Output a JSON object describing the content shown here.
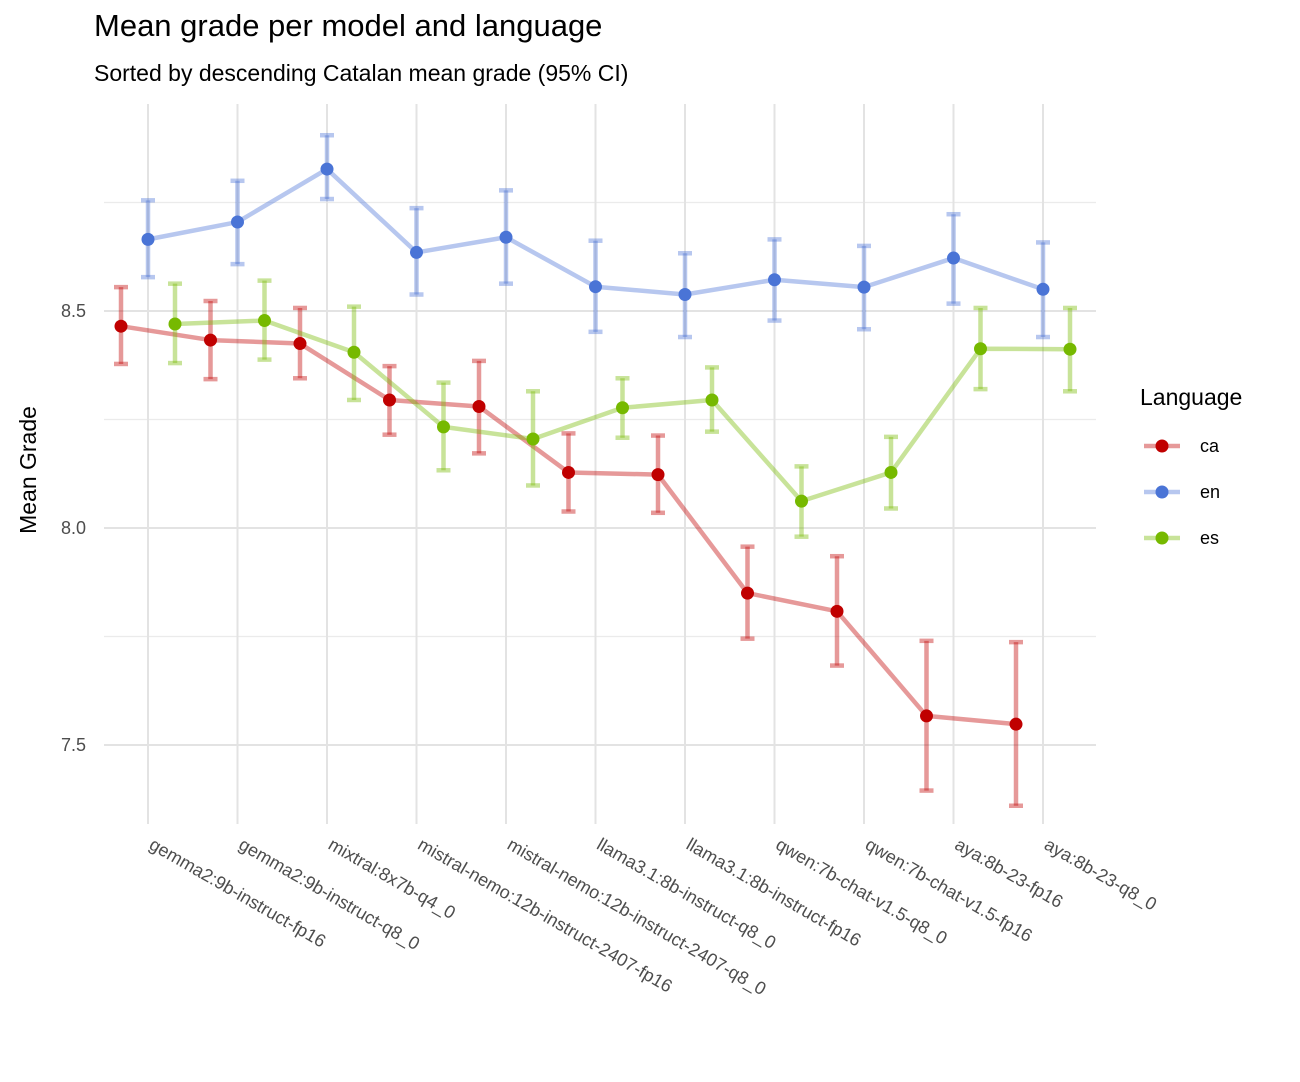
{
  "chart_data": {
    "type": "line",
    "title": "Mean grade per model and language",
    "subtitle": "Sorted by descending Catalan mean grade (95% CI)",
    "xlabel": "",
    "ylabel": "Mean Grade",
    "ylim": [
      7.3,
      8.95
    ],
    "yticks": [
      7.5,
      8.0,
      8.5
    ],
    "ytick_labels": [
      "7.5",
      "8.0",
      "8.5"
    ],
    "grid": true,
    "legend_title": "Language",
    "legend_position": "right",
    "categories": [
      "gemma2:9b-instruct-fp16",
      "gemma2:9b-instruct-q8_0",
      "mixtral:8x7b-q4_0",
      "mistral-nemo:12b-instruct-2407-fp16",
      "mistral-nemo:12b-instruct-2407-q8_0",
      "llama3.1:8b-instruct-q8_0",
      "llama3.1:8b-instruct-fp16",
      "qwen:7b-chat-v1.5-q8_0",
      "qwen:7b-chat-v1.5-fp16",
      "aya:8b-23-fp16",
      "aya:8b-23-q8_0"
    ],
    "series": [
      {
        "name": "ca",
        "color": "#c00000",
        "values": [
          8.465,
          8.433,
          8.425,
          8.295,
          8.28,
          8.128,
          8.123,
          7.85,
          7.808,
          7.567,
          7.548
        ],
        "ci_low": [
          8.378,
          8.343,
          8.345,
          8.215,
          8.172,
          8.038,
          8.035,
          7.745,
          7.683,
          7.395,
          7.36
        ],
        "ci_high": [
          8.555,
          8.523,
          8.507,
          8.373,
          8.385,
          8.218,
          8.213,
          7.957,
          7.935,
          7.74,
          7.737
        ]
      },
      {
        "name": "en",
        "color": "#4a74d6",
        "values": [
          8.665,
          8.705,
          8.827,
          8.635,
          8.67,
          8.556,
          8.538,
          8.572,
          8.555,
          8.622,
          8.55
        ],
        "ci_low": [
          8.578,
          8.608,
          8.758,
          8.538,
          8.563,
          8.452,
          8.44,
          8.478,
          8.458,
          8.517,
          8.44
        ],
        "ci_high": [
          8.755,
          8.8,
          8.905,
          8.737,
          8.778,
          8.662,
          8.633,
          8.665,
          8.65,
          8.723,
          8.658
        ]
      },
      {
        "name": "es",
        "color": "#76b900",
        "values": [
          8.47,
          8.478,
          8.405,
          8.233,
          8.205,
          8.277,
          8.295,
          8.062,
          8.128,
          8.413,
          8.412
        ],
        "ci_low": [
          8.38,
          8.388,
          8.295,
          8.133,
          8.098,
          8.208,
          8.222,
          7.98,
          8.045,
          8.32,
          8.315
        ],
        "ci_high": [
          8.563,
          8.57,
          8.51,
          8.335,
          8.315,
          8.345,
          8.37,
          8.142,
          8.21,
          8.507,
          8.507
        ]
      }
    ]
  }
}
